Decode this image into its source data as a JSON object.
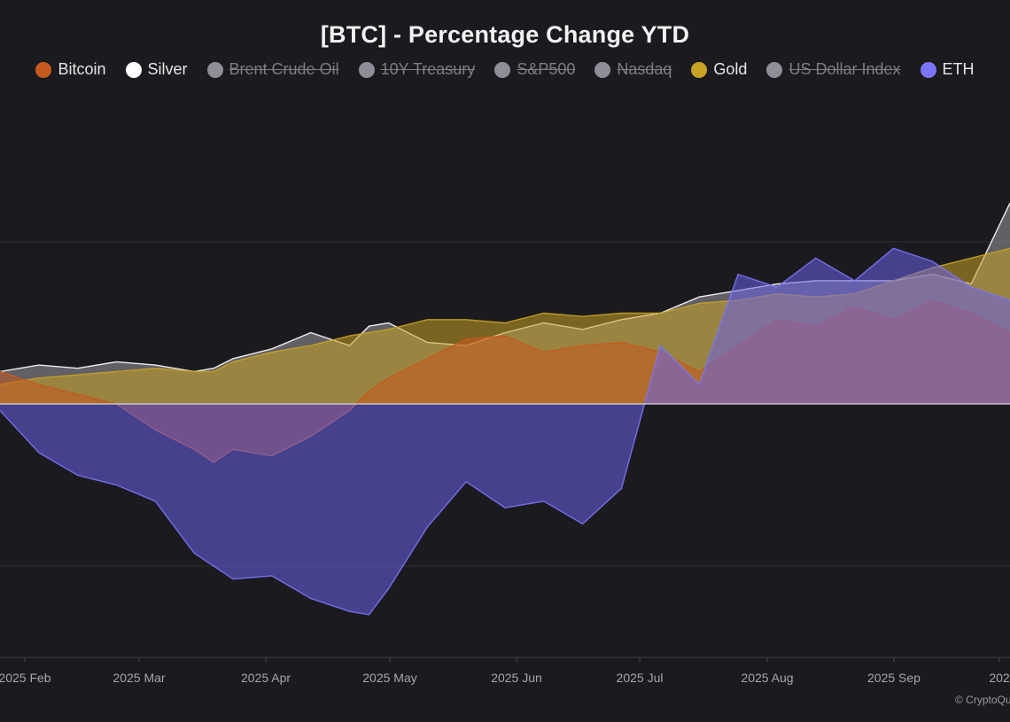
{
  "title": "[BTC] - Percentage Change YTD",
  "legend": [
    {
      "label": "Bitcoin",
      "color": "#c65a1e",
      "hidden": false
    },
    {
      "label": "Silver",
      "color": "#ffffff",
      "hidden": false
    },
    {
      "label": "Brent Crude Oil",
      "color": "#8e8e96",
      "hidden": true
    },
    {
      "label": "10Y Treasury",
      "color": "#8e8e96",
      "hidden": true
    },
    {
      "label": "S&P500",
      "color": "#8e8e96",
      "hidden": true
    },
    {
      "label": "Nasdaq",
      "color": "#8e8e96",
      "hidden": true
    },
    {
      "label": "Gold",
      "color": "#c9a225",
      "hidden": false
    },
    {
      "label": "US Dollar Index",
      "color": "#8e8e96",
      "hidden": true
    },
    {
      "label": "ETH",
      "color": "#7b75f5",
      "hidden": false
    }
  ],
  "watermark": "© CryptoQu",
  "chart_data": {
    "type": "area",
    "x_ticks": [
      "2025 Feb",
      "2025 Mar",
      "2025 Apr",
      "2025 May",
      "2025 Jun",
      "2025 Jul",
      "2025 Aug",
      "2025 Sep",
      "202"
    ],
    "x": [
      0,
      10,
      20,
      30,
      40,
      50,
      55,
      60,
      70,
      80,
      90,
      95,
      100,
      110,
      120,
      130,
      140,
      150,
      160,
      170,
      180,
      190,
      200,
      210,
      220,
      230,
      240,
      250,
      260
    ],
    "y_baseline": 0,
    "grid": true,
    "series": [
      {
        "name": "Silver",
        "color": "#ffffff",
        "values": [
          10,
          12,
          11,
          13,
          12,
          10,
          11,
          14,
          17,
          22,
          18,
          24,
          25,
          19,
          18,
          22,
          25,
          23,
          26,
          28,
          33,
          35,
          37,
          38,
          38,
          38,
          40,
          37,
          62
        ]
      },
      {
        "name": "Gold",
        "color": "#c9a225",
        "values": [
          6,
          8,
          9,
          10,
          11,
          10,
          10,
          13,
          16,
          18,
          21,
          22,
          23,
          26,
          26,
          25,
          28,
          27,
          28,
          28,
          31,
          32,
          34,
          33,
          34,
          38,
          42,
          45,
          48
        ]
      },
      {
        "name": "Bitcoin",
        "color": "#c65a1e",
        "values": [
          10,
          6,
          3,
          0,
          -8,
          -14,
          -18,
          -14,
          -16,
          -10,
          -2,
          4,
          8,
          14,
          20,
          21,
          16,
          18,
          19,
          16,
          10,
          18,
          26,
          24,
          30,
          26,
          32,
          28,
          22
        ]
      },
      {
        "name": "ETH",
        "color": "#7b75f5",
        "values": [
          -2,
          -15,
          -22,
          -25,
          -30,
          -46,
          -50,
          -54,
          -53,
          -60,
          -64,
          -65,
          -57,
          -38,
          -24,
          -32,
          -30,
          -37,
          -26,
          18,
          6,
          40,
          36,
          45,
          38,
          48,
          44,
          36,
          32
        ]
      }
    ]
  }
}
